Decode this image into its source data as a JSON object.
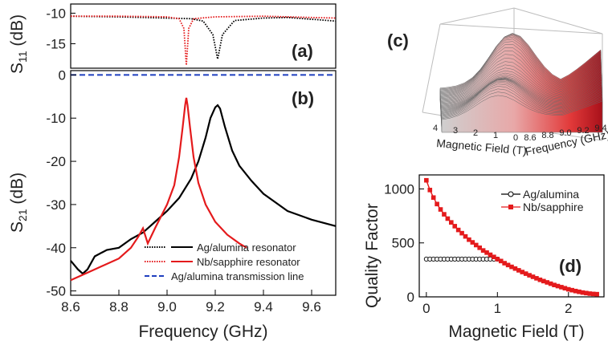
{
  "chart_data": [
    {
      "panel": "(a)",
      "type": "line",
      "ylabel": "S11 (dB)",
      "ylabel_main": "S",
      "ylabel_sub": "11",
      "ylabel_unit": " (dB)",
      "xlim": [
        8.6,
        9.7
      ],
      "ylim": [
        -19,
        -8.5
      ],
      "yticks": [
        -10,
        -15
      ],
      "series": [
        {
          "name": "Ag/alumina resonator",
          "color": "#000000",
          "style": "dotted",
          "x": [
            8.6,
            8.8,
            9.0,
            9.1,
            9.15,
            9.19,
            9.21,
            9.23,
            9.28,
            9.4,
            9.5,
            9.6,
            9.7
          ],
          "y": [
            -10.5,
            -10.6,
            -10.8,
            -10.9,
            -11.3,
            -13.5,
            -17.5,
            -13.5,
            -11.2,
            -10.8,
            -10.7,
            -11.0,
            -11.3
          ]
        },
        {
          "name": "Nb/sapphire resonator",
          "color": "#e41a1c",
          "style": "dotted",
          "x": [
            8.6,
            8.8,
            9.0,
            9.05,
            9.07,
            9.08,
            9.09,
            9.11,
            9.2,
            9.4,
            9.6,
            9.7
          ],
          "y": [
            -10.5,
            -10.5,
            -10.6,
            -10.9,
            -12.5,
            -18.5,
            -12.5,
            -10.9,
            -10.6,
            -10.5,
            -10.7,
            -10.8
          ]
        }
      ]
    },
    {
      "panel": "(b)",
      "type": "line",
      "xlabel": "Frequency (GHz)",
      "ylabel": "S21 (dB)",
      "ylabel_main": "S",
      "ylabel_sub": "21",
      "ylabel_unit": " (dB)",
      "xlim": [
        8.6,
        9.7
      ],
      "ylim": [
        -51,
        1
      ],
      "xticks": [
        "8.6",
        "8.8",
        "9.0",
        "9.2",
        "9.4",
        "9.6"
      ],
      "yticks": [
        "0",
        "-10",
        "-20",
        "-30",
        "-40",
        "-50"
      ],
      "legend_position": "bottom-right",
      "series": [
        {
          "name": "Ag/alumina resonator",
          "color": "#000000",
          "style": "solid",
          "x": [
            8.6,
            8.63,
            8.65,
            8.67,
            8.7,
            8.75,
            8.8,
            8.85,
            8.9,
            8.95,
            9.0,
            9.05,
            9.1,
            9.13,
            9.16,
            9.18,
            9.2,
            9.21,
            9.22,
            9.24,
            9.27,
            9.3,
            9.35,
            9.4,
            9.5,
            9.6,
            9.7
          ],
          "y": [
            -43,
            -45,
            -46,
            -45,
            -42,
            -40.5,
            -40,
            -38,
            -36.5,
            -34,
            -31.5,
            -28.5,
            -24,
            -20,
            -14.5,
            -10,
            -7.5,
            -7,
            -7.8,
            -12,
            -17.5,
            -21,
            -24.5,
            -27.5,
            -31.5,
            -33.5,
            -35
          ]
        },
        {
          "name": "Nb/sapphire resonator",
          "color": "#e41a1c",
          "style": "solid",
          "x": [
            8.6,
            8.7,
            8.8,
            8.85,
            8.88,
            8.9,
            8.92,
            8.95,
            9.0,
            9.03,
            9.05,
            9.065,
            9.075,
            9.08,
            9.085,
            9.095,
            9.11,
            9.13,
            9.16,
            9.2,
            9.25,
            9.3,
            9.33
          ],
          "y": [
            -47.5,
            -45,
            -42.5,
            -40,
            -37.5,
            -35.5,
            -39,
            -35.5,
            -30,
            -25.5,
            -19,
            -12,
            -7,
            -5.3,
            -7,
            -12,
            -19,
            -25,
            -30,
            -34,
            -37,
            -39,
            -40
          ]
        },
        {
          "name": "Ag/alumina transmission line",
          "color": "#1f3fbf",
          "style": "dashed",
          "x": [
            8.6,
            9.7
          ],
          "y": [
            0,
            0
          ]
        }
      ]
    },
    {
      "panel": "(c)",
      "type": "surface",
      "xlabel": "Magnetic Field (T)",
      "ylabel": "Frequency (GHz)",
      "x_ticks": [
        "4",
        "3",
        "2",
        "1",
        "0"
      ],
      "y_ticks": [
        "8.6",
        "8.8",
        "9.0",
        "9.2",
        "9.4"
      ]
    },
    {
      "panel": "(d)",
      "type": "line",
      "xlabel": "Magnetic Field (T)",
      "ylabel": "Quality Factor",
      "xlim": [
        -0.1,
        2.5
      ],
      "ylim": [
        0,
        1130
      ],
      "xticks": [
        "0",
        "1",
        "2"
      ],
      "yticks": [
        "0",
        "500",
        "1000"
      ],
      "legend_position": "top-right",
      "series": [
        {
          "name": "Ag/alumina",
          "color": "#000000",
          "marker": "circle-open",
          "x": [
            0.0,
            0.05,
            0.1,
            0.15,
            0.2,
            0.25,
            0.3,
            0.35,
            0.4,
            0.45,
            0.5,
            0.55,
            0.6,
            0.65,
            0.7,
            0.75,
            0.8,
            0.85,
            0.9,
            0.95,
            1.0
          ],
          "y": [
            350,
            350,
            350,
            350,
            350,
            350,
            350,
            350,
            350,
            350,
            350,
            350,
            350,
            350,
            350,
            350,
            350,
            350,
            350,
            350,
            350
          ]
        },
        {
          "name": "Nb/sapphire",
          "color": "#e41a1c",
          "marker": "square",
          "x": [
            0.0,
            0.05,
            0.1,
            0.15,
            0.2,
            0.25,
            0.3,
            0.35,
            0.4,
            0.45,
            0.5,
            0.55,
            0.6,
            0.65,
            0.7,
            0.75,
            0.8,
            0.85,
            0.9,
            0.95,
            1.0,
            1.05,
            1.1,
            1.15,
            1.2,
            1.25,
            1.3,
            1.35,
            1.4,
            1.45,
            1.5,
            1.55,
            1.6,
            1.65,
            1.7,
            1.75,
            1.8,
            1.85,
            1.9,
            1.95,
            2.0,
            2.05,
            2.1,
            2.15,
            2.2,
            2.25,
            2.3,
            2.35,
            2.4
          ],
          "y": [
            1080,
            990,
            920,
            860,
            810,
            765,
            725,
            690,
            655,
            620,
            590,
            560,
            530,
            505,
            480,
            455,
            430,
            410,
            390,
            370,
            350,
            332,
            312,
            295,
            278,
            262,
            246,
            230,
            215,
            200,
            186,
            172,
            158,
            146,
            134,
            122,
            110,
            100,
            90,
            80,
            70,
            62,
            54,
            47,
            40,
            35,
            30,
            27,
            25
          ]
        }
      ]
    }
  ]
}
